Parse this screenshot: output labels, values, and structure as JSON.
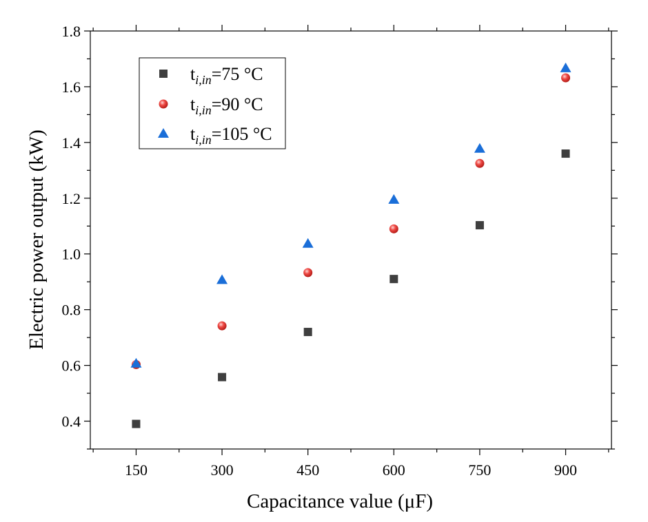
{
  "chart_data": {
    "type": "scatter",
    "xlabel": "Capacitance value (μF)",
    "ylabel": "Electric power output (kW)",
    "x": [
      150,
      300,
      450,
      600,
      750,
      900
    ],
    "xlim": [
      70,
      980
    ],
    "ylim": [
      0.3,
      1.8
    ],
    "x_ticks": [
      "150",
      "300",
      "450",
      "600",
      "750",
      "900"
    ],
    "y_ticks": [
      "0.4",
      "0.6",
      "0.8",
      "1.0",
      "1.2",
      "1.4",
      "1.6",
      "1.8"
    ],
    "grid": false,
    "legend_position": "top-left",
    "series": [
      {
        "name_main": "t",
        "name_sub": "i,in",
        "name_rest": "=75 °C",
        "marker": "square",
        "color": "#3f3f3f",
        "values": [
          0.39,
          0.558,
          0.72,
          0.91,
          1.103,
          1.36
        ]
      },
      {
        "name_main": "t",
        "name_sub": "i,in",
        "name_rest": "=90 °C",
        "marker": "circle",
        "color": "#e8302c",
        "values": [
          0.603,
          0.742,
          0.933,
          1.09,
          1.325,
          1.632
        ]
      },
      {
        "name_main": "t",
        "name_sub": "i,in",
        "name_rest": "=105 °C",
        "marker": "triangle",
        "color": "#1a6ed8",
        "values": [
          0.607,
          0.907,
          1.037,
          1.195,
          1.378,
          1.667
        ]
      }
    ]
  }
}
